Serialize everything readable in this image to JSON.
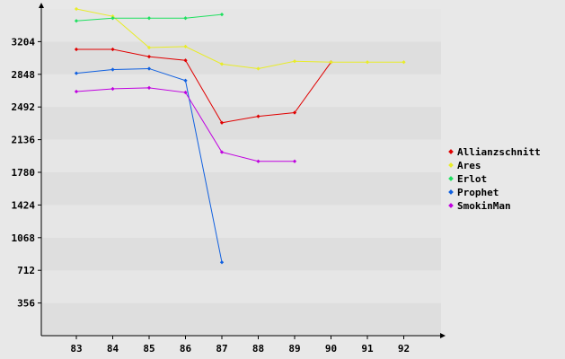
{
  "chart_data": {
    "type": "line",
    "title": "",
    "xlabel": "",
    "ylabel": "",
    "x": [
      83,
      84,
      85,
      86,
      87,
      88,
      89,
      90,
      91,
      92
    ],
    "yticks": [
      356,
      712,
      1068,
      1424,
      1780,
      2136,
      2492,
      2848,
      3204
    ],
    "ylim": [
      0,
      3560
    ],
    "grid": "horizontal bands",
    "legend_position": "right",
    "series": [
      {
        "name": "Allianzschnitt",
        "color": "#e00000",
        "values": [
          3120,
          3120,
          3040,
          3000,
          2320,
          2390,
          2430,
          2980,
          null,
          null
        ]
      },
      {
        "name": "Ares",
        "color": "#e8ec28",
        "values": [
          3560,
          3480,
          3140,
          3150,
          2960,
          2910,
          2990,
          2980,
          2980,
          2980
        ]
      },
      {
        "name": "Erlot",
        "color": "#20e060",
        "values": [
          3430,
          3460,
          3460,
          3460,
          3500,
          null,
          null,
          null,
          null,
          null
        ]
      },
      {
        "name": "Prophet",
        "color": "#1060e0",
        "values": [
          2860,
          2900,
          2910,
          2780,
          800,
          null,
          null,
          null,
          null,
          null
        ]
      },
      {
        "name": "SmokinMan",
        "color": "#c000e0",
        "values": [
          2660,
          2690,
          2700,
          2650,
          2000,
          1900,
          1900,
          null,
          null,
          null
        ]
      }
    ]
  }
}
